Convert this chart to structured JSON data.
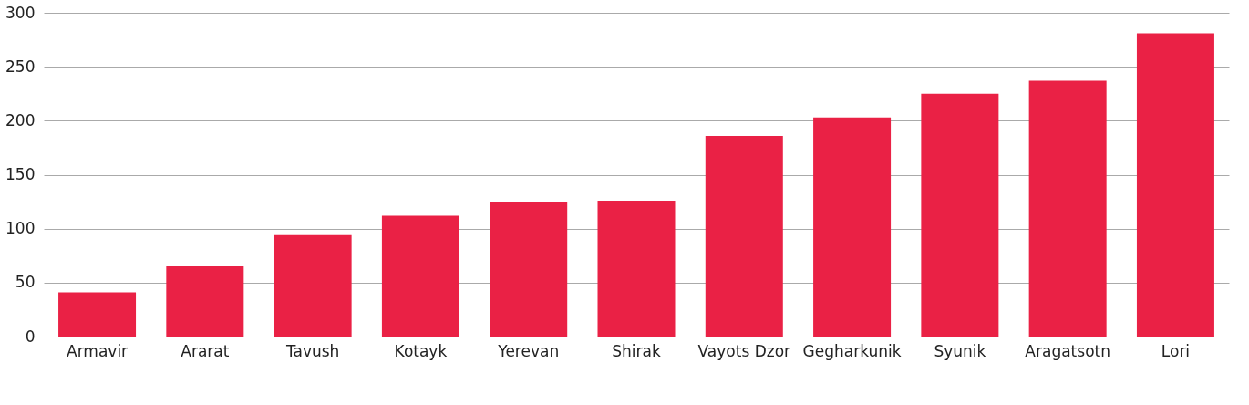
{
  "chart_data": {
    "type": "bar",
    "categories": [
      "Armavir",
      "Ararat",
      "Tavush",
      "Kotayk",
      "Yerevan",
      "Shirak",
      "Vayots Dzor",
      "Gegharkunik",
      "Syunik",
      "Aragatsotn",
      "Lori"
    ],
    "values": [
      41,
      65,
      94,
      112,
      125,
      126,
      186,
      203,
      225,
      237,
      281
    ],
    "color": "#ea2145",
    "ylim": [
      0,
      300
    ],
    "yticks": [
      0,
      50,
      100,
      150,
      200,
      250,
      300
    ],
    "grid": "y"
  }
}
